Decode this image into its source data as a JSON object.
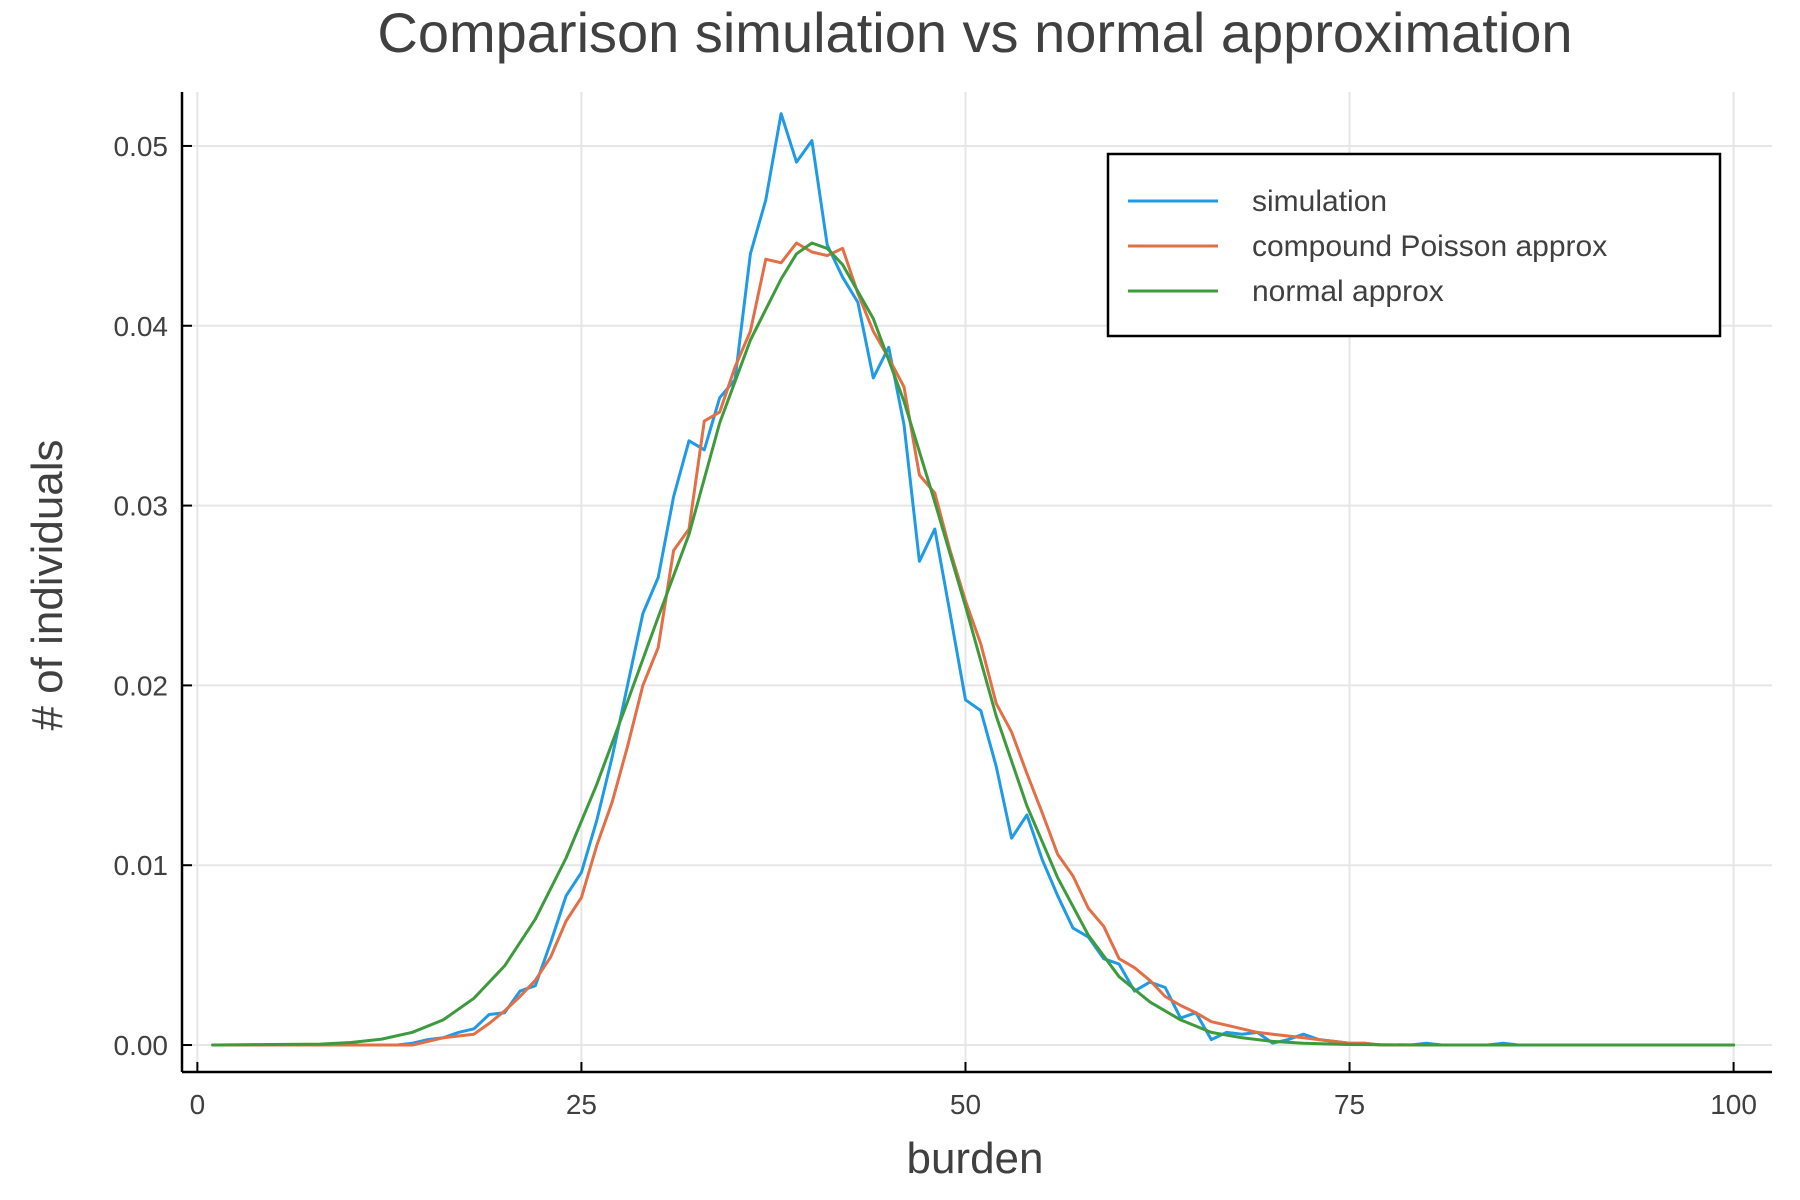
{
  "chart_data": {
    "type": "line",
    "title": "Comparison simulation vs normal approximation",
    "xlabel": "burden",
    "ylabel": "# of individuals",
    "xlim": [
      -1,
      102.5
    ],
    "ylim": [
      -0.0015,
      0.053
    ],
    "xticks": [
      0,
      25,
      50,
      75,
      100
    ],
    "xtick_labels": [
      "0",
      "25",
      "50",
      "75",
      "100"
    ],
    "yticks": [
      0.0,
      0.01,
      0.02,
      0.03,
      0.04,
      0.05
    ],
    "ytick_labels": [
      "0.00",
      "0.01",
      "0.02",
      "0.03",
      "0.04",
      "0.05"
    ],
    "grid": true,
    "legend_position": "top-right",
    "series": [
      {
        "name": "simulation",
        "color": "#1f9be6",
        "x": [
          1,
          5,
          10,
          13,
          14,
          15,
          16,
          17,
          18,
          19,
          20,
          21,
          22,
          23,
          24,
          25,
          26,
          27,
          28,
          29,
          30,
          31,
          32,
          33,
          34,
          35,
          36,
          37,
          38,
          39,
          40,
          41,
          42,
          43,
          44,
          45,
          46,
          47,
          48,
          49,
          50,
          51,
          52,
          53,
          54,
          55,
          56,
          57,
          58,
          59,
          60,
          61,
          62,
          63,
          64,
          65,
          66,
          67,
          68,
          69,
          70,
          71,
          72,
          73,
          74,
          75,
          76,
          77,
          78,
          79,
          80,
          81,
          82,
          83,
          84,
          85,
          86,
          87,
          88,
          89,
          90,
          95,
          100
        ],
        "y": [
          0,
          0,
          0,
          0,
          0.0001,
          0.0003,
          0.0004,
          0.0007,
          0.0009,
          0.0017,
          0.0018,
          0.003,
          0.0033,
          0.0057,
          0.0083,
          0.0096,
          0.0125,
          0.016,
          0.02,
          0.024,
          0.026,
          0.0305,
          0.0336,
          0.0331,
          0.036,
          0.037,
          0.044,
          0.047,
          0.0518,
          0.0491,
          0.0503,
          0.0445,
          0.0427,
          0.0413,
          0.0371,
          0.0388,
          0.0345,
          0.0269,
          0.0287,
          0.024,
          0.0192,
          0.0186,
          0.0155,
          0.0115,
          0.0128,
          0.0103,
          0.0083,
          0.0065,
          0.006,
          0.0048,
          0.0045,
          0.003,
          0.0035,
          0.0032,
          0.0015,
          0.0018,
          0.0003,
          0.0007,
          0.0006,
          0.0007,
          0.0001,
          0.0003,
          0.0006,
          0.0003,
          0.0002,
          0.0001,
          0.0001,
          0,
          0,
          0,
          0.0001,
          0,
          0,
          0,
          0,
          0.0001,
          0,
          0,
          0,
          0,
          0,
          0,
          0
        ]
      },
      {
        "name": "compound Poisson approx",
        "color": "#e26f46",
        "x": [
          1,
          5,
          10,
          14,
          15,
          16,
          17,
          18,
          19,
          20,
          21,
          22,
          23,
          24,
          25,
          26,
          27,
          28,
          29,
          30,
          31,
          32,
          33,
          34,
          35,
          36,
          37,
          38,
          39,
          40,
          41,
          42,
          43,
          44,
          45,
          46,
          47,
          48,
          49,
          50,
          51,
          52,
          53,
          54,
          55,
          56,
          57,
          58,
          59,
          60,
          61,
          62,
          63,
          64,
          65,
          66,
          67,
          68,
          69,
          70,
          71,
          72,
          73,
          74,
          75,
          76,
          77,
          78,
          80,
          85,
          90,
          95,
          100
        ],
        "y": [
          0,
          0,
          0,
          0,
          0.0002,
          0.0004,
          0.0005,
          0.0006,
          0.0012,
          0.0019,
          0.0027,
          0.0036,
          0.0049,
          0.0069,
          0.0082,
          0.0111,
          0.0135,
          0.0166,
          0.02,
          0.0221,
          0.0275,
          0.0287,
          0.0347,
          0.0352,
          0.0377,
          0.0397,
          0.0437,
          0.0435,
          0.0446,
          0.0441,
          0.0439,
          0.0443,
          0.0418,
          0.0397,
          0.0382,
          0.0366,
          0.0317,
          0.0307,
          0.0275,
          0.0247,
          0.0223,
          0.019,
          0.0174,
          0.0151,
          0.0129,
          0.0106,
          0.0094,
          0.0076,
          0.0066,
          0.0048,
          0.0043,
          0.0036,
          0.0027,
          0.0022,
          0.0018,
          0.0013,
          0.0011,
          0.0009,
          0.0007,
          0.0006,
          0.0005,
          0.0004,
          0.0003,
          0.0002,
          0.0001,
          0.0001,
          0,
          0,
          0,
          0,
          0,
          0,
          0
        ]
      },
      {
        "name": "normal approx",
        "color": "#3d9b3d",
        "x": [
          1,
          8,
          10,
          12,
          14,
          16,
          18,
          20,
          22,
          24,
          26,
          28,
          30,
          32,
          34,
          36,
          38,
          39,
          40,
          41,
          42,
          44,
          46,
          48,
          50,
          52,
          54,
          56,
          58,
          60,
          62,
          64,
          66,
          68,
          70,
          72,
          75,
          80,
          90,
          100
        ],
        "y": [
          0,
          5e-05,
          0.00014,
          0.00033,
          0.00071,
          0.0014,
          0.0026,
          0.0044,
          0.007,
          0.0104,
          0.0145,
          0.0191,
          0.0238,
          0.0284,
          0.0346,
          0.0392,
          0.0426,
          0.044,
          0.0446,
          0.0443,
          0.0434,
          0.0404,
          0.0358,
          0.0302,
          0.0244,
          0.0183,
          0.0133,
          0.0093,
          0.0061,
          0.0038,
          0.0024,
          0.0014,
          0.0007,
          0.0004,
          0.0002,
          0.0001,
          3e-05,
          0,
          0,
          0
        ]
      }
    ]
  }
}
